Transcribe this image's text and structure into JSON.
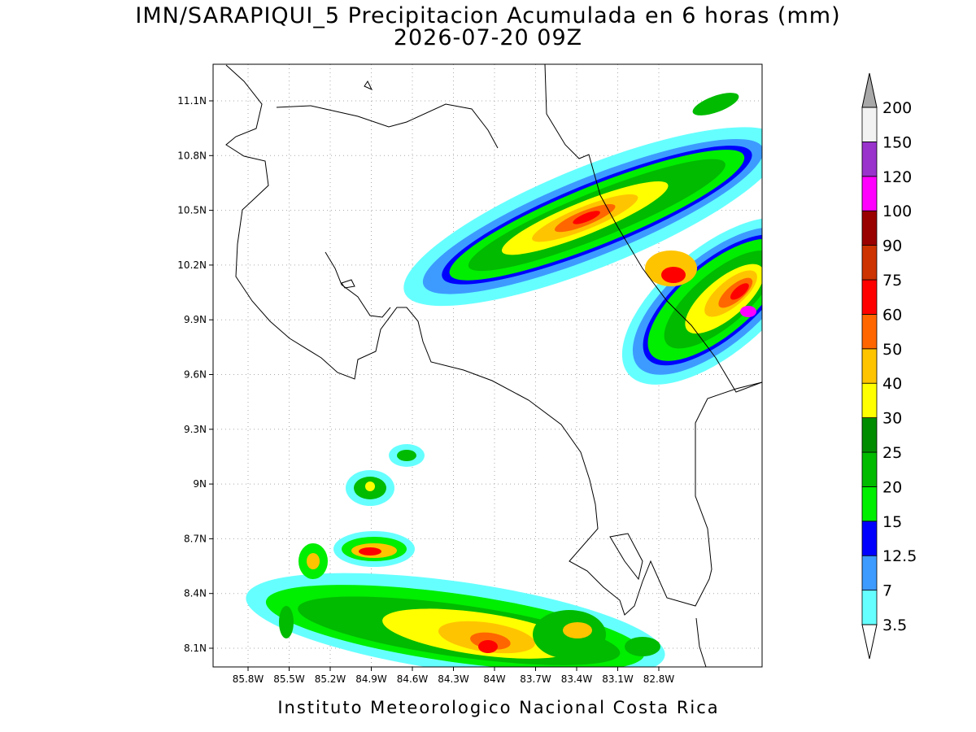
{
  "header": {
    "title": "IMN/SARAPIQUI_5 Precipitacion Acumulada en 6 horas (mm)",
    "subtitle": "2026-07-20 09Z"
  },
  "map": {
    "lon_labels": [
      "85.8W",
      "85.5W",
      "85.2W",
      "84.9W",
      "84.6W",
      "84.3W",
      "84W",
      "83.7W",
      "83.4W",
      "83.1W",
      "82.8W"
    ],
    "lat_labels": [
      "11.1N",
      "10.8N",
      "10.5N",
      "10.2N",
      "9.9N",
      "9.6N",
      "9.3N",
      "9N",
      "8.7N",
      "8.4N",
      "8.1N"
    ]
  },
  "colorbar": {
    "levels": [
      3.5,
      7,
      12.5,
      15,
      20,
      25,
      30,
      40,
      50,
      60,
      75,
      90,
      100,
      120,
      150,
      200
    ],
    "colors": [
      "#66ffff",
      "#3d9bff",
      "#0000ff",
      "#00ee00",
      "#00bb00",
      "#008c00",
      "#ffff00",
      "#ffc400",
      "#ff6600",
      "#ff0000",
      "#cc3300",
      "#990000",
      "#ff00ff",
      "#9933cc",
      "#f2f2f2"
    ],
    "under_color": "#ffffff",
    "over_color": "#a8a8a8"
  },
  "footer": "Instituto Meteorologico Nacional Costa Rica"
}
